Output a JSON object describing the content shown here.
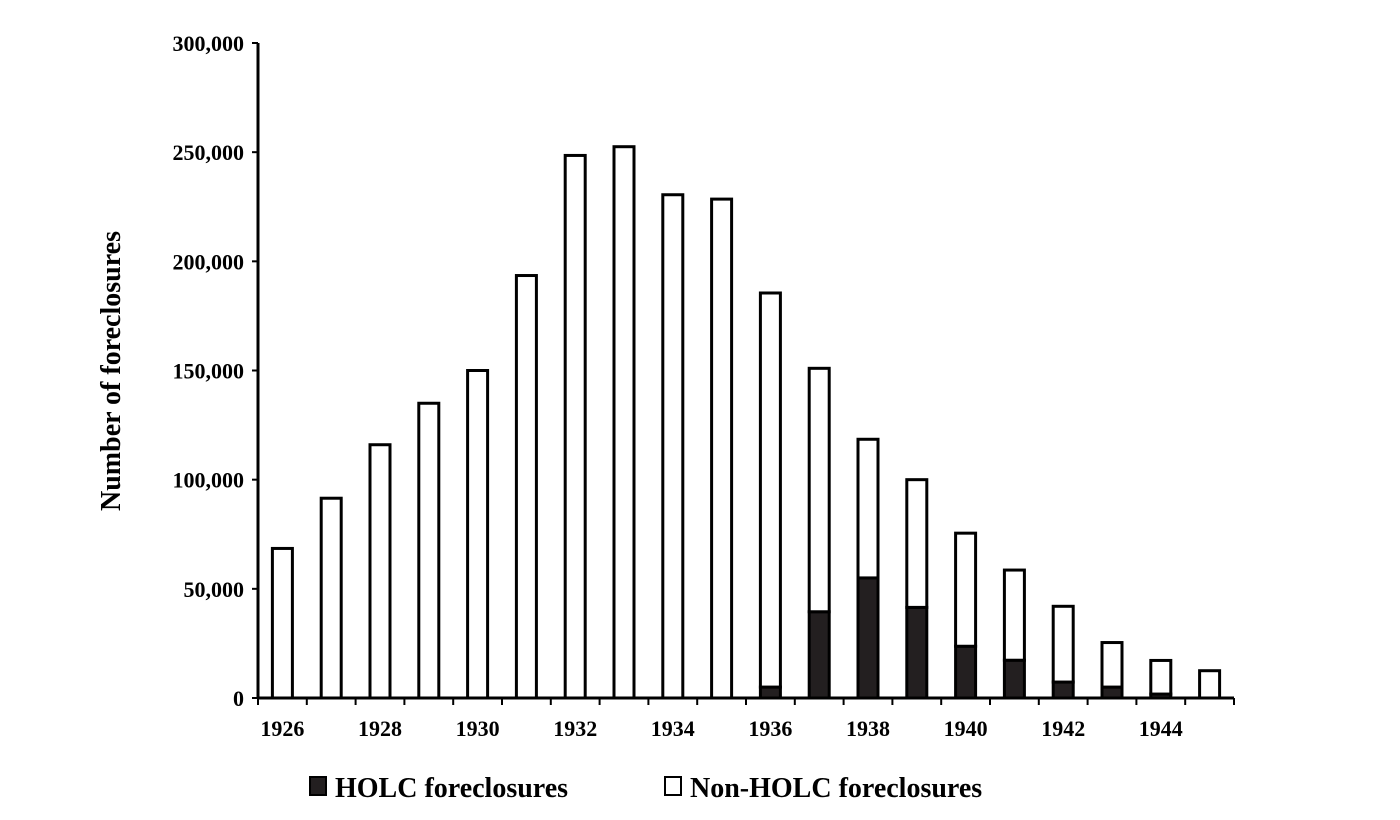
{
  "chart_data": {
    "type": "bar",
    "stacked": true,
    "title": "",
    "xlabel": "",
    "ylabel": "Number of foreclosures",
    "ylim": [
      0,
      300000
    ],
    "yticks": [
      "0",
      "50,000",
      "100,000",
      "150,000",
      "200,000",
      "250,000",
      "300,000"
    ],
    "ytick_values": [
      0,
      50000,
      100000,
      150000,
      200000,
      250000,
      300000
    ],
    "categories": [
      "1926",
      "1927",
      "1928",
      "1929",
      "1930",
      "1931",
      "1932",
      "1933",
      "1934",
      "1935",
      "1936",
      "1937",
      "1938",
      "1939",
      "1940",
      "1941",
      "1942",
      "1943",
      "1944",
      "1945"
    ],
    "xtick_labels": [
      "1926",
      "1928",
      "1930",
      "1932",
      "1934",
      "1936",
      "1938",
      "1940",
      "1942",
      "1944"
    ],
    "grid": false,
    "legend_position": "bottom",
    "series": [
      {
        "name": "HOLC foreclosures",
        "color": "#231f20",
        "values": [
          0,
          0,
          0,
          0,
          0,
          0,
          0,
          0,
          0,
          0,
          5000,
          39500,
          55000,
          41500,
          23700,
          17300,
          7300,
          5000,
          1800,
          0
        ]
      },
      {
        "name": "Non-HOLC foreclosures",
        "color": "#ffffff",
        "values": [
          68500,
          91500,
          116000,
          135000,
          150000,
          193500,
          248500,
          252500,
          230500,
          228500,
          180500,
          111500,
          63500,
          58500,
          51800,
          41300,
          34700,
          20400,
          15400,
          12500
        ]
      }
    ]
  }
}
